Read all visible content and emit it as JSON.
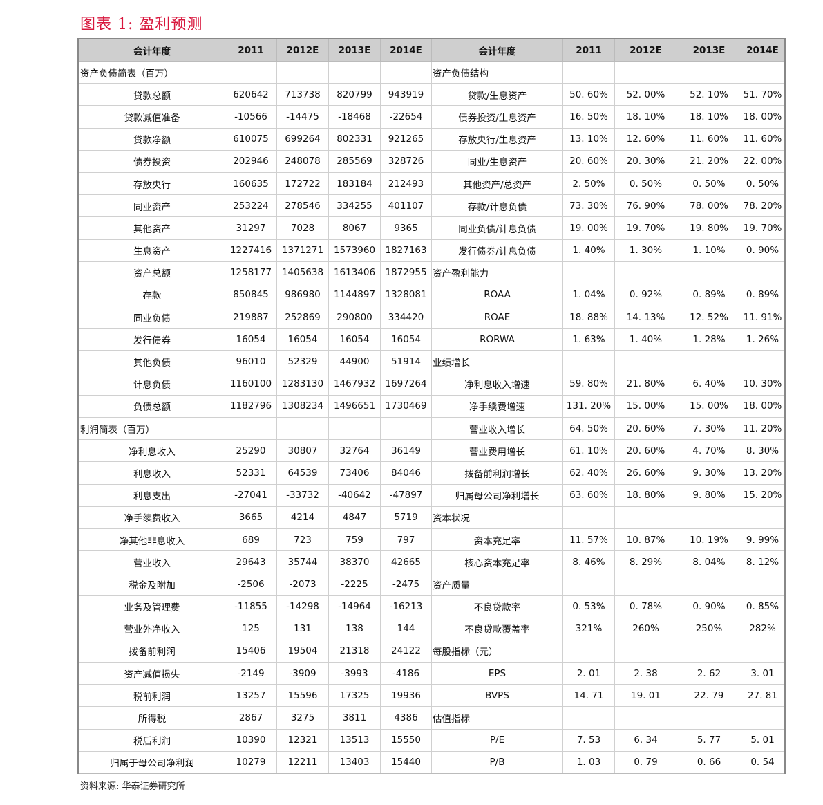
{
  "title": "图表 1:  盈利预测",
  "source": "资料来源:  华泰证券研究所",
  "header": [
    "会计年度",
    "2011",
    "2012E",
    "2013E",
    "2014E",
    "会计年度",
    "2011",
    "2012E",
    "2013E",
    "2014E"
  ],
  "rows": [
    {
      "l": "资产负债简表（百万）",
      "ls": true,
      "lv": [
        "",
        "",
        "",
        ""
      ],
      "r": "资产负债结构",
      "rs": true,
      "rv": [
        "",
        "",
        "",
        ""
      ]
    },
    {
      "l": "贷款总额",
      "lv": [
        "620642",
        "713738",
        "820799",
        "943919"
      ],
      "r": "贷款/生息资产",
      "rv": [
        "50. 60%",
        "52. 00%",
        "52. 10%",
        "51. 70%"
      ]
    },
    {
      "l": "贷款减值准备",
      "lv": [
        "-10566",
        "-14475",
        "-18468",
        "-22654"
      ],
      "r": "债券投资/生息资产",
      "rv": [
        "16. 50%",
        "18. 10%",
        "18. 10%",
        "18. 00%"
      ]
    },
    {
      "l": "贷款净额",
      "lv": [
        "610075",
        "699264",
        "802331",
        "921265"
      ],
      "r": "存放央行/生息资产",
      "rv": [
        "13. 10%",
        "12. 60%",
        "11. 60%",
        "11. 60%"
      ]
    },
    {
      "l": "债券投资",
      "lv": [
        "202946",
        "248078",
        "285569",
        "328726"
      ],
      "r": "同业/生息资产",
      "rv": [
        "20. 60%",
        "20. 30%",
        "21. 20%",
        "22. 00%"
      ]
    },
    {
      "l": "存放央行",
      "lv": [
        "160635",
        "172722",
        "183184",
        "212493"
      ],
      "r": "其他资产/总资产",
      "rv": [
        "2. 50%",
        "0. 50%",
        "0. 50%",
        "0. 50%"
      ]
    },
    {
      "l": "同业资产",
      "lv": [
        "253224",
        "278546",
        "334255",
        "401107"
      ],
      "r": "存款/计息负债",
      "rv": [
        "73. 30%",
        "76. 90%",
        "78. 00%",
        "78. 20%"
      ]
    },
    {
      "l": "其他资产",
      "lv": [
        "31297",
        "7028",
        "8067",
        "9365"
      ],
      "r": "同业负债/计息负债",
      "rv": [
        "19. 00%",
        "19. 70%",
        "19. 80%",
        "19. 70%"
      ]
    },
    {
      "l": "生息资产",
      "lv": [
        "1227416",
        "1371271",
        "1573960",
        "1827163"
      ],
      "r": "发行债券/计息负债",
      "rv": [
        "1. 40%",
        "1. 30%",
        "1. 10%",
        "0. 90%"
      ]
    },
    {
      "l": "资产总额",
      "lv": [
        "1258177",
        "1405638",
        "1613406",
        "1872955"
      ],
      "r": "资产盈利能力",
      "rs": true,
      "rv": [
        "",
        "",
        "",
        ""
      ]
    },
    {
      "l": "存款",
      "lv": [
        "850845",
        "986980",
        "1144897",
        "1328081"
      ],
      "r": "ROAA",
      "rv": [
        "1. 04%",
        "0. 92%",
        "0. 89%",
        "0. 89%"
      ]
    },
    {
      "l": "同业负债",
      "lv": [
        "219887",
        "252869",
        "290800",
        "334420"
      ],
      "r": "ROAE",
      "rv": [
        "18. 88%",
        "14. 13%",
        "12. 52%",
        "11. 91%"
      ]
    },
    {
      "l": "发行债券",
      "lv": [
        "16054",
        "16054",
        "16054",
        "16054"
      ],
      "r": "RORWA",
      "rv": [
        "1. 63%",
        "1. 40%",
        "1. 28%",
        "1. 26%"
      ]
    },
    {
      "l": "其他负债",
      "lv": [
        "96010",
        "52329",
        "44900",
        "51914"
      ],
      "r": "业绩增长",
      "rs": true,
      "rv": [
        "",
        "",
        "",
        ""
      ]
    },
    {
      "l": "计息负债",
      "lv": [
        "1160100",
        "1283130",
        "1467932",
        "1697264"
      ],
      "r": "净利息收入增速",
      "rv": [
        "59. 80%",
        "21. 80%",
        "6. 40%",
        "10. 30%"
      ]
    },
    {
      "l": "负债总额",
      "lv": [
        "1182796",
        "1308234",
        "1496651",
        "1730469"
      ],
      "r": "净手续费增速",
      "rv": [
        "131. 20%",
        "15. 00%",
        "15. 00%",
        "18. 00%"
      ]
    },
    {
      "l": "利润简表（百万）",
      "ls": true,
      "lv": [
        "",
        "",
        "",
        ""
      ],
      "r": "营业收入增长",
      "rv": [
        "64. 50%",
        "20. 60%",
        "7. 30%",
        "11. 20%"
      ]
    },
    {
      "l": "净利息收入",
      "lv": [
        "25290",
        "30807",
        "32764",
        "36149"
      ],
      "r": "营业费用增长",
      "rv": [
        "61. 10%",
        "20. 60%",
        "4. 70%",
        "8. 30%"
      ]
    },
    {
      "l": "利息收入",
      "lv": [
        "52331",
        "64539",
        "73406",
        "84046"
      ],
      "r": "拨备前利润增长",
      "rv": [
        "62. 40%",
        "26. 60%",
        "9. 30%",
        "13. 20%"
      ]
    },
    {
      "l": "利息支出",
      "lv": [
        "-27041",
        "-33732",
        "-40642",
        "-47897"
      ],
      "r": "归属母公司净利增长",
      "rv": [
        "63. 60%",
        "18. 80%",
        "9. 80%",
        "15. 20%"
      ]
    },
    {
      "l": "净手续费收入",
      "lv": [
        "3665",
        "4214",
        "4847",
        "5719"
      ],
      "r": "资本状况",
      "rs": true,
      "rv": [
        "",
        "",
        "",
        ""
      ]
    },
    {
      "l": "净其他非息收入",
      "lv": [
        "689",
        "723",
        "759",
        "797"
      ],
      "r": "资本充足率",
      "rv": [
        "11. 57%",
        "10. 87%",
        "10. 19%",
        "9. 99%"
      ]
    },
    {
      "l": "营业收入",
      "lv": [
        "29643",
        "35744",
        "38370",
        "42665"
      ],
      "r": "核心资本充足率",
      "rv": [
        "8. 46%",
        "8. 29%",
        "8. 04%",
        "8. 12%"
      ]
    },
    {
      "l": "税金及附加",
      "lv": [
        "-2506",
        "-2073",
        "-2225",
        "-2475"
      ],
      "r": "资产质量",
      "rs": true,
      "rv": [
        "",
        "",
        "",
        ""
      ]
    },
    {
      "l": "业务及管理费",
      "lv": [
        "-11855",
        "-14298",
        "-14964",
        "-16213"
      ],
      "r": "不良贷款率",
      "rv": [
        "0. 53%",
        "0. 78%",
        "0. 90%",
        "0. 85%"
      ]
    },
    {
      "l": "营业外净收入",
      "lv": [
        "125",
        "131",
        "138",
        "144"
      ],
      "r": "不良贷款覆盖率",
      "rv": [
        "321%",
        "260%",
        "250%",
        "282%"
      ]
    },
    {
      "l": "拨备前利润",
      "lv": [
        "15406",
        "19504",
        "21318",
        "24122"
      ],
      "r": "每股指标（元）",
      "rs": true,
      "rv": [
        "",
        "",
        "",
        ""
      ]
    },
    {
      "l": "资产减值损失",
      "lv": [
        "-2149",
        "-3909",
        "-3993",
        "-4186"
      ],
      "r": "EPS",
      "rv": [
        "2. 01",
        "2. 38",
        "2. 62",
        "3. 01"
      ]
    },
    {
      "l": "税前利润",
      "lv": [
        "13257",
        "15596",
        "17325",
        "19936"
      ],
      "r": "BVPS",
      "rv": [
        "14. 71",
        "19. 01",
        "22. 79",
        "27. 81"
      ]
    },
    {
      "l": "所得税",
      "lv": [
        "2867",
        "3275",
        "3811",
        "4386"
      ],
      "r": "估值指标",
      "rs": true,
      "rv": [
        "",
        "",
        "",
        ""
      ]
    },
    {
      "l": "税后利润",
      "lv": [
        "10390",
        "12321",
        "13513",
        "15550"
      ],
      "r": "P/E",
      "rv": [
        "7. 53",
        "6. 34",
        "5. 77",
        "5. 01"
      ]
    },
    {
      "l": "归属于母公司净利润",
      "lv": [
        "10279",
        "12211",
        "13403",
        "15440"
      ],
      "r": "P/B",
      "rv": [
        "1. 03",
        "0. 79",
        "0. 66",
        "0. 54"
      ]
    }
  ]
}
